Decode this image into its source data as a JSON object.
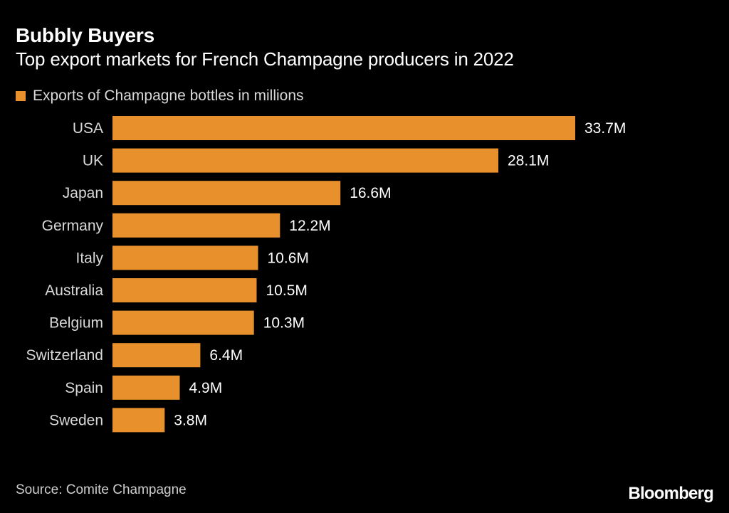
{
  "colors": {
    "background": "#000000",
    "bar": "#e8902b",
    "text": "#ffffff",
    "muted_text": "#d9d9d9"
  },
  "chart_data": {
    "type": "bar",
    "orientation": "horizontal",
    "title": "Bubbly Buyers",
    "subtitle": "Top export markets for French Champagne producers in 2022",
    "legend": [
      "Exports of Champagne bottles in millions"
    ],
    "categories": [
      "USA",
      "UK",
      "Japan",
      "Germany",
      "Italy",
      "Australia",
      "Belgium",
      "Switzerland",
      "Spain",
      "Sweden"
    ],
    "series": [
      {
        "name": "Exports of Champagne bottles in millions",
        "values": [
          33.7,
          28.1,
          16.6,
          12.2,
          10.6,
          10.5,
          10.3,
          6.4,
          4.9,
          3.8
        ],
        "labels": [
          "33.7M",
          "28.1M",
          "16.6M",
          "12.2M",
          "10.6M",
          "10.5M",
          "10.3M",
          "6.4M",
          "4.9M",
          "3.8M"
        ]
      }
    ],
    "xlim": [
      0,
      33.7
    ],
    "xlabel": "",
    "ylabel": "",
    "grid": false
  },
  "footer": {
    "source": "Source: Comite Champagne",
    "brand": "Bloomberg"
  }
}
